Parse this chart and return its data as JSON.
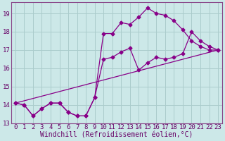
{
  "xlabel": "Windchill (Refroidissement éolien,°C)",
  "background_color": "#cce8e8",
  "grid_color": "#aacccc",
  "line_color": "#880088",
  "xlim": [
    -0.5,
    23.5
  ],
  "ylim": [
    13.0,
    19.6
  ],
  "xticks": [
    0,
    1,
    2,
    3,
    4,
    5,
    6,
    7,
    8,
    9,
    10,
    11,
    12,
    13,
    14,
    15,
    16,
    17,
    18,
    19,
    20,
    21,
    22,
    23
  ],
  "yticks": [
    13,
    14,
    15,
    16,
    17,
    18,
    19
  ],
  "series1_x": [
    0,
    1,
    2,
    3,
    4,
    5,
    6,
    7,
    8,
    9,
    10,
    11,
    12,
    13,
    14,
    15,
    16,
    17,
    18,
    19,
    20,
    21,
    22,
    23
  ],
  "series1_y": [
    14.1,
    14.0,
    13.4,
    13.8,
    14.1,
    14.1,
    13.6,
    13.4,
    13.4,
    14.4,
    17.9,
    17.9,
    18.5,
    18.4,
    18.8,
    19.3,
    19.0,
    18.9,
    18.6,
    18.1,
    17.5,
    17.2,
    17.0,
    17.0
  ],
  "series2_x": [
    0,
    1,
    2,
    3,
    4,
    5,
    6,
    7,
    8,
    9,
    10,
    11,
    12,
    13,
    14,
    15,
    16,
    17,
    18,
    19,
    20,
    21,
    22,
    23
  ],
  "series2_y": [
    14.1,
    14.0,
    13.4,
    13.8,
    14.1,
    14.1,
    13.6,
    13.4,
    13.4,
    14.4,
    16.5,
    16.6,
    16.9,
    17.1,
    15.9,
    16.3,
    16.6,
    16.5,
    16.6,
    16.8,
    18.0,
    17.5,
    17.2,
    17.0
  ],
  "series3_x": [
    0,
    23
  ],
  "series3_y": [
    14.1,
    17.0
  ],
  "marker": "D",
  "marker_size": 2.5,
  "fontsize_ticks": 6.5,
  "fontsize_label": 7.0
}
